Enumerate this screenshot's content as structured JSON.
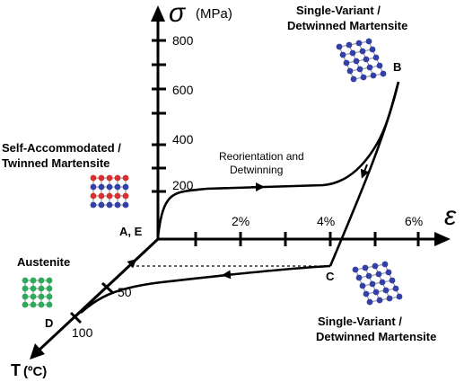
{
  "axes": {
    "stress_symbol": "σ",
    "stress_unit": "(MPa)",
    "strain_symbol": "ε",
    "temperature_label": "T",
    "temperature_unit": "(ºC)"
  },
  "stress_ticks": [
    "200",
    "400",
    "600",
    "800"
  ],
  "strain_ticks": [
    "2%",
    "4%",
    "6%"
  ],
  "temperature_ticks": [
    "50",
    "100"
  ],
  "points": {
    "ae": "A, E",
    "b": "B",
    "c": "C",
    "d": "D"
  },
  "annotations": {
    "top_right_line1": "Single-Variant /",
    "top_right_line2": "Detwinned Martensite",
    "left_line1": "Self-Accommodated /",
    "left_line2": "Twinned Martensite",
    "reorientation_line1": "Reorientation and",
    "reorientation_line2": "Detwinning",
    "austenite": "Austenite",
    "bottom_right_line1": "Single-Variant /",
    "bottom_right_line2": "Detwinned Martensite"
  },
  "colors": {
    "detwinned_atoms": "#3340a8",
    "twinned_red_atoms": "#d83030",
    "twinned_blue_atoms": "#3340a8",
    "austenite_atoms": "#2faa5a"
  }
}
